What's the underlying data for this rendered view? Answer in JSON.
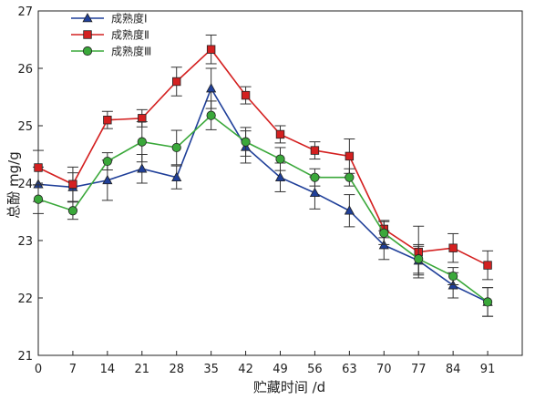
{
  "chart_data": {
    "type": "line",
    "xlabel": "贮藏时间 /d",
    "ylabel": "总酚 mg/g",
    "x": [
      0,
      7,
      14,
      21,
      28,
      35,
      42,
      49,
      56,
      63,
      70,
      77,
      84,
      91
    ],
    "xlim": [
      0,
      98
    ],
    "ylim": [
      21,
      27
    ],
    "yticks": [
      21,
      22,
      23,
      24,
      25,
      26,
      27
    ],
    "legend_position": "top-left",
    "grid": false,
    "series": [
      {
        "name": "成熟度Ⅰ",
        "color": "#1f3f99",
        "marker": "triangle",
        "values": [
          23.98,
          23.93,
          24.05,
          24.25,
          24.1,
          25.65,
          24.63,
          24.1,
          23.83,
          23.52,
          22.92,
          22.65,
          22.22,
          21.93
        ],
        "errors": [
          0.3,
          0.25,
          0.35,
          0.25,
          0.2,
          0.35,
          0.28,
          0.25,
          0.28,
          0.28,
          0.25,
          0.25,
          0.22,
          0.25
        ]
      },
      {
        "name": "成熟度Ⅱ",
        "color": "#d42020",
        "marker": "square",
        "values": [
          24.27,
          23.98,
          25.1,
          25.13,
          25.77,
          26.33,
          25.53,
          24.85,
          24.57,
          24.47,
          23.2,
          22.8,
          22.87,
          22.57
        ],
        "errors": [
          0.3,
          0.3,
          0.15,
          0.15,
          0.25,
          0.25,
          0.15,
          0.15,
          0.15,
          0.3,
          0.15,
          0.45,
          0.25,
          0.25
        ]
      },
      {
        "name": "成熟度Ⅲ",
        "color": "#3aa83a",
        "marker": "circle",
        "values": [
          23.72,
          23.52,
          24.38,
          24.72,
          24.62,
          25.18,
          24.72,
          24.42,
          24.1,
          24.1,
          23.13,
          22.68,
          22.38,
          21.93
        ],
        "errors": [
          0.25,
          0.15,
          0.15,
          0.35,
          0.3,
          0.25,
          0.25,
          0.2,
          0.15,
          0.15,
          0.2,
          0.25,
          0.15,
          0.25
        ]
      }
    ]
  }
}
